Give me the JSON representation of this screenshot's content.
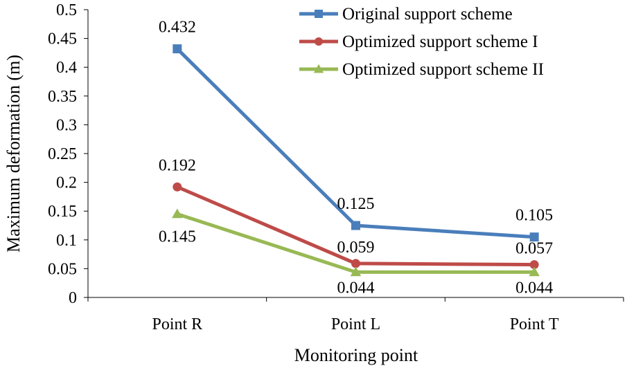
{
  "chart_data": {
    "type": "line",
    "xlabel": "Monitoring point",
    "ylabel": "Maximum deformation (m)",
    "categories": [
      "Point R",
      "Point L",
      "Point T"
    ],
    "ylim": [
      0,
      0.5
    ],
    "yticks": [
      "0",
      "0.05",
      "0.1",
      "0.15",
      "0.2",
      "0.25",
      "0.3",
      "0.35",
      "0.4",
      "0.45",
      "0.5"
    ],
    "grid": false,
    "legend_position": "top-right",
    "series": [
      {
        "name": "Original support scheme",
        "values": [
          0.432,
          0.125,
          0.105
        ],
        "labels": [
          "0.432",
          "0.125",
          "0.105"
        ],
        "color": "#4a7ebb",
        "marker": "square"
      },
      {
        "name": "Optimized support scheme I",
        "values": [
          0.192,
          0.059,
          0.057
        ],
        "labels": [
          "0.192",
          "0.059",
          "0.057"
        ],
        "color": "#be4b48",
        "marker": "circle"
      },
      {
        "name": "Optimized support scheme II",
        "values": [
          0.145,
          0.044,
          0.044
        ],
        "labels": [
          "0.145",
          "0.044",
          "0.044"
        ],
        "color": "#98b954",
        "marker": "triangle"
      }
    ]
  }
}
